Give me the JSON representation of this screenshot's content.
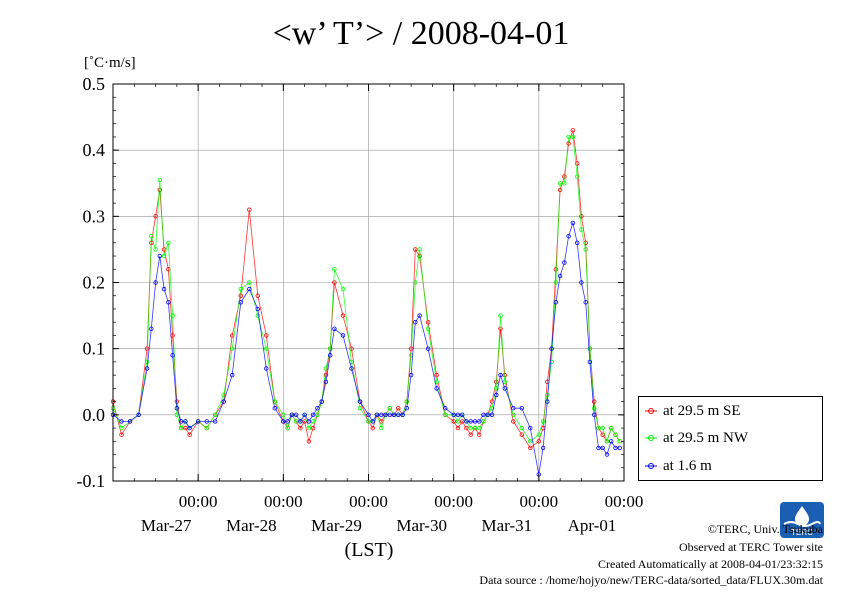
{
  "title": "<w’ T’> / 2008-04-01",
  "unit_label": "[˚C·m/s]",
  "legend": {
    "items": [
      {
        "label": "at 29.5 m SE",
        "color": "#ff0000"
      },
      {
        "label": "at 29.5 m NW",
        "color": "#00ff00"
      },
      {
        "label": "at 1.6 m",
        "color": "#0000ff"
      }
    ]
  },
  "credits": {
    "copyright": "©TERC, Univ. Tsukuba",
    "observed": "Observed at TERC Tower site",
    "created": "Created Automatically at 2008-04-01/23:32:15",
    "source": "Data source : /home/hojyo/new/TERC-data/sorted_data/FLUX.30m.dat"
  },
  "logo_text": "TERC",
  "chart_data": {
    "type": "line",
    "title": "<w’ T’> / 2008-04-01",
    "ylabel": "[˚C·m/s]",
    "xlabel": "(LST)",
    "ylim": [
      -0.1,
      0.5
    ],
    "yticks": [
      "0.5",
      "0.4",
      "0.3",
      "0.2",
      "0.1",
      "0.0",
      "-0.1"
    ],
    "xlim_days": [
      0,
      6.0
    ],
    "xticks": [
      {
        "day": 1,
        "time": "00:00",
        "date": "Mar-27"
      },
      {
        "day": 2,
        "time": "00:00",
        "date": "Mar-28"
      },
      {
        "day": 3,
        "time": "00:00",
        "date": "Mar-29"
      },
      {
        "day": 4,
        "time": "00:00",
        "date": "Mar-30"
      },
      {
        "day": 5,
        "time": "00:00",
        "date": "Mar-31"
      },
      {
        "day": 6,
        "time": "00:00",
        "date": "Apr-01"
      }
    ],
    "grid": true,
    "legend_position": "right",
    "series": [
      {
        "name": "at 29.5 m SE",
        "color": "#ff0000",
        "x": [
          0.0,
          0.1,
          0.2,
          0.3,
          0.4,
          0.45,
          0.5,
          0.55,
          0.6,
          0.65,
          0.7,
          0.75,
          0.8,
          0.85,
          0.9,
          1.0,
          1.1,
          1.2,
          1.3,
          1.4,
          1.5,
          1.6,
          1.7,
          1.8,
          1.9,
          2.0,
          2.05,
          2.1,
          2.15,
          2.2,
          2.25,
          2.3,
          2.35,
          2.4,
          2.45,
          2.5,
          2.55,
          2.6,
          2.7,
          2.8,
          2.9,
          3.0,
          3.05,
          3.1,
          3.15,
          3.2,
          3.25,
          3.3,
          3.35,
          3.4,
          3.45,
          3.5,
          3.55,
          3.6,
          3.7,
          3.8,
          3.9,
          4.0,
          4.05,
          4.1,
          4.15,
          4.2,
          4.25,
          4.3,
          4.35,
          4.4,
          4.45,
          4.5,
          4.55,
          4.6,
          4.7,
          4.8,
          4.9,
          5.0,
          5.05,
          5.1,
          5.15,
          5.2,
          5.25,
          5.3,
          5.35,
          5.4,
          5.45,
          5.5,
          5.55,
          5.6,
          5.65,
          5.7,
          5.75,
          5.8,
          5.85,
          5.9,
          5.95
        ],
        "y": [
          0.02,
          -0.03,
          -0.01,
          0.0,
          0.1,
          0.26,
          0.3,
          0.34,
          0.25,
          0.22,
          0.12,
          0.02,
          -0.02,
          -0.02,
          -0.03,
          -0.01,
          -0.02,
          0.0,
          0.02,
          0.12,
          0.18,
          0.31,
          0.18,
          0.12,
          0.02,
          -0.01,
          -0.02,
          0.0,
          -0.01,
          -0.02,
          -0.01,
          -0.04,
          -0.02,
          0.0,
          0.02,
          0.06,
          0.1,
          0.2,
          0.15,
          0.1,
          0.02,
          -0.01,
          -0.02,
          0.0,
          -0.01,
          0.0,
          0.01,
          0.0,
          0.01,
          0.0,
          0.02,
          0.1,
          0.25,
          0.24,
          0.14,
          0.06,
          0.0,
          -0.01,
          -0.02,
          -0.01,
          -0.02,
          -0.03,
          -0.02,
          -0.03,
          -0.01,
          0.0,
          0.02,
          0.05,
          0.13,
          0.06,
          -0.01,
          -0.03,
          -0.05,
          -0.04,
          -0.02,
          0.05,
          0.1,
          0.22,
          0.34,
          0.36,
          0.41,
          0.43,
          0.38,
          0.3,
          0.26,
          0.1,
          0.02,
          -0.02,
          -0.03,
          -0.04,
          -0.02,
          -0.03,
          -0.04
        ]
      },
      {
        "name": "at 29.5 m NW",
        "color": "#00ff00",
        "x": [
          0.0,
          0.1,
          0.2,
          0.3,
          0.4,
          0.45,
          0.5,
          0.55,
          0.6,
          0.65,
          0.7,
          0.75,
          0.8,
          0.85,
          0.9,
          1.0,
          1.1,
          1.2,
          1.3,
          1.4,
          1.5,
          1.6,
          1.7,
          1.8,
          1.9,
          2.0,
          2.05,
          2.1,
          2.15,
          2.2,
          2.25,
          2.3,
          2.35,
          2.4,
          2.45,
          2.5,
          2.55,
          2.6,
          2.7,
          2.8,
          2.9,
          3.0,
          3.05,
          3.1,
          3.15,
          3.2,
          3.25,
          3.3,
          3.35,
          3.4,
          3.45,
          3.5,
          3.55,
          3.6,
          3.7,
          3.8,
          3.9,
          4.0,
          4.05,
          4.1,
          4.15,
          4.2,
          4.25,
          4.3,
          4.35,
          4.4,
          4.45,
          4.5,
          4.55,
          4.6,
          4.7,
          4.8,
          4.9,
          5.0,
          5.05,
          5.1,
          5.15,
          5.2,
          5.25,
          5.3,
          5.35,
          5.4,
          5.45,
          5.5,
          5.55,
          5.6,
          5.65,
          5.7,
          5.75,
          5.8,
          5.85,
          5.9,
          5.95
        ],
        "y": [
          0.01,
          -0.02,
          -0.01,
          0.0,
          0.08,
          0.27,
          0.25,
          0.355,
          0.24,
          0.26,
          0.15,
          0.0,
          -0.02,
          -0.01,
          -0.02,
          -0.01,
          -0.02,
          0.0,
          0.03,
          0.1,
          0.19,
          0.2,
          0.15,
          0.1,
          0.02,
          0.0,
          -0.02,
          0.0,
          -0.01,
          -0.01,
          0.0,
          -0.02,
          -0.01,
          0.0,
          0.02,
          0.07,
          0.1,
          0.22,
          0.19,
          0.08,
          0.01,
          -0.01,
          -0.01,
          0.0,
          -0.02,
          0.0,
          0.01,
          0.0,
          0.0,
          0.0,
          0.02,
          0.09,
          0.2,
          0.25,
          0.13,
          0.05,
          0.0,
          0.0,
          -0.01,
          0.0,
          -0.01,
          -0.02,
          -0.02,
          -0.02,
          -0.01,
          0.0,
          0.01,
          0.04,
          0.15,
          0.05,
          0.0,
          -0.02,
          -0.04,
          -0.03,
          -0.01,
          0.03,
          0.08,
          0.2,
          0.35,
          0.35,
          0.42,
          0.42,
          0.36,
          0.28,
          0.25,
          0.1,
          0.01,
          -0.02,
          -0.02,
          -0.04,
          -0.02,
          -0.03,
          -0.04
        ]
      },
      {
        "name": "at 1.6 m",
        "color": "#0000ff",
        "x": [
          0.0,
          0.1,
          0.2,
          0.3,
          0.4,
          0.45,
          0.5,
          0.55,
          0.6,
          0.65,
          0.7,
          0.75,
          0.8,
          0.85,
          0.9,
          1.0,
          1.1,
          1.2,
          1.3,
          1.4,
          1.5,
          1.6,
          1.7,
          1.8,
          1.9,
          2.0,
          2.05,
          2.1,
          2.15,
          2.2,
          2.25,
          2.3,
          2.35,
          2.4,
          2.45,
          2.5,
          2.55,
          2.6,
          2.7,
          2.8,
          2.9,
          3.0,
          3.05,
          3.1,
          3.15,
          3.2,
          3.25,
          3.3,
          3.35,
          3.4,
          3.45,
          3.5,
          3.55,
          3.6,
          3.7,
          3.8,
          3.9,
          4.0,
          4.05,
          4.1,
          4.15,
          4.2,
          4.25,
          4.3,
          4.35,
          4.4,
          4.45,
          4.5,
          4.55,
          4.6,
          4.7,
          4.8,
          4.9,
          5.0,
          5.05,
          5.1,
          5.15,
          5.2,
          5.25,
          5.3,
          5.35,
          5.4,
          5.45,
          5.5,
          5.55,
          5.6,
          5.65,
          5.7,
          5.75,
          5.8,
          5.85,
          5.9,
          5.95
        ],
        "y": [
          0.0,
          -0.01,
          -0.01,
          0.0,
          0.07,
          0.13,
          0.2,
          0.24,
          0.19,
          0.17,
          0.09,
          0.01,
          -0.01,
          -0.01,
          -0.02,
          -0.01,
          -0.01,
          -0.01,
          0.02,
          0.06,
          0.17,
          0.19,
          0.16,
          0.07,
          0.01,
          -0.01,
          -0.01,
          0.0,
          0.0,
          -0.01,
          0.0,
          -0.01,
          0.0,
          0.01,
          0.02,
          0.05,
          0.09,
          0.13,
          0.12,
          0.07,
          0.02,
          0.0,
          -0.01,
          0.0,
          0.0,
          0.0,
          0.0,
          0.0,
          0.0,
          0.0,
          0.01,
          0.06,
          0.14,
          0.15,
          0.1,
          0.04,
          0.01,
          0.0,
          0.0,
          0.0,
          -0.01,
          -0.01,
          -0.01,
          -0.01,
          0.0,
          0.0,
          0.0,
          0.03,
          0.06,
          0.04,
          0.01,
          0.01,
          -0.02,
          -0.09,
          -0.05,
          0.02,
          0.1,
          0.17,
          0.21,
          0.23,
          0.27,
          0.29,
          0.26,
          0.2,
          0.17,
          0.08,
          0.0,
          -0.05,
          -0.05,
          -0.06,
          -0.04,
          -0.05,
          -0.05
        ]
      }
    ]
  }
}
